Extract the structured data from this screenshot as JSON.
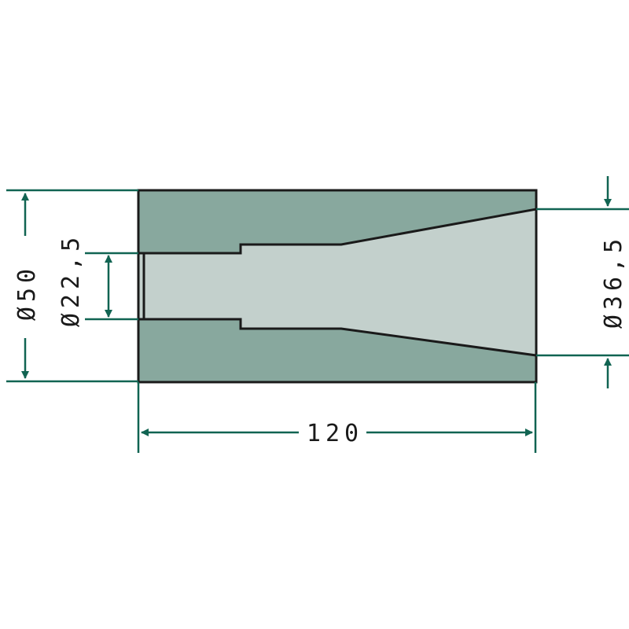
{
  "colors": {
    "body_fill": "#88a89e",
    "bore_fill": "#c3d0cc",
    "outline": "#1a1a1a",
    "dimension": "#116452"
  },
  "dimensions": {
    "outer_diameter": "Ø50",
    "inner_bore_diameter": "Ø22,5",
    "cone_exit_diameter": "Ø36,5",
    "overall_length": "120"
  }
}
